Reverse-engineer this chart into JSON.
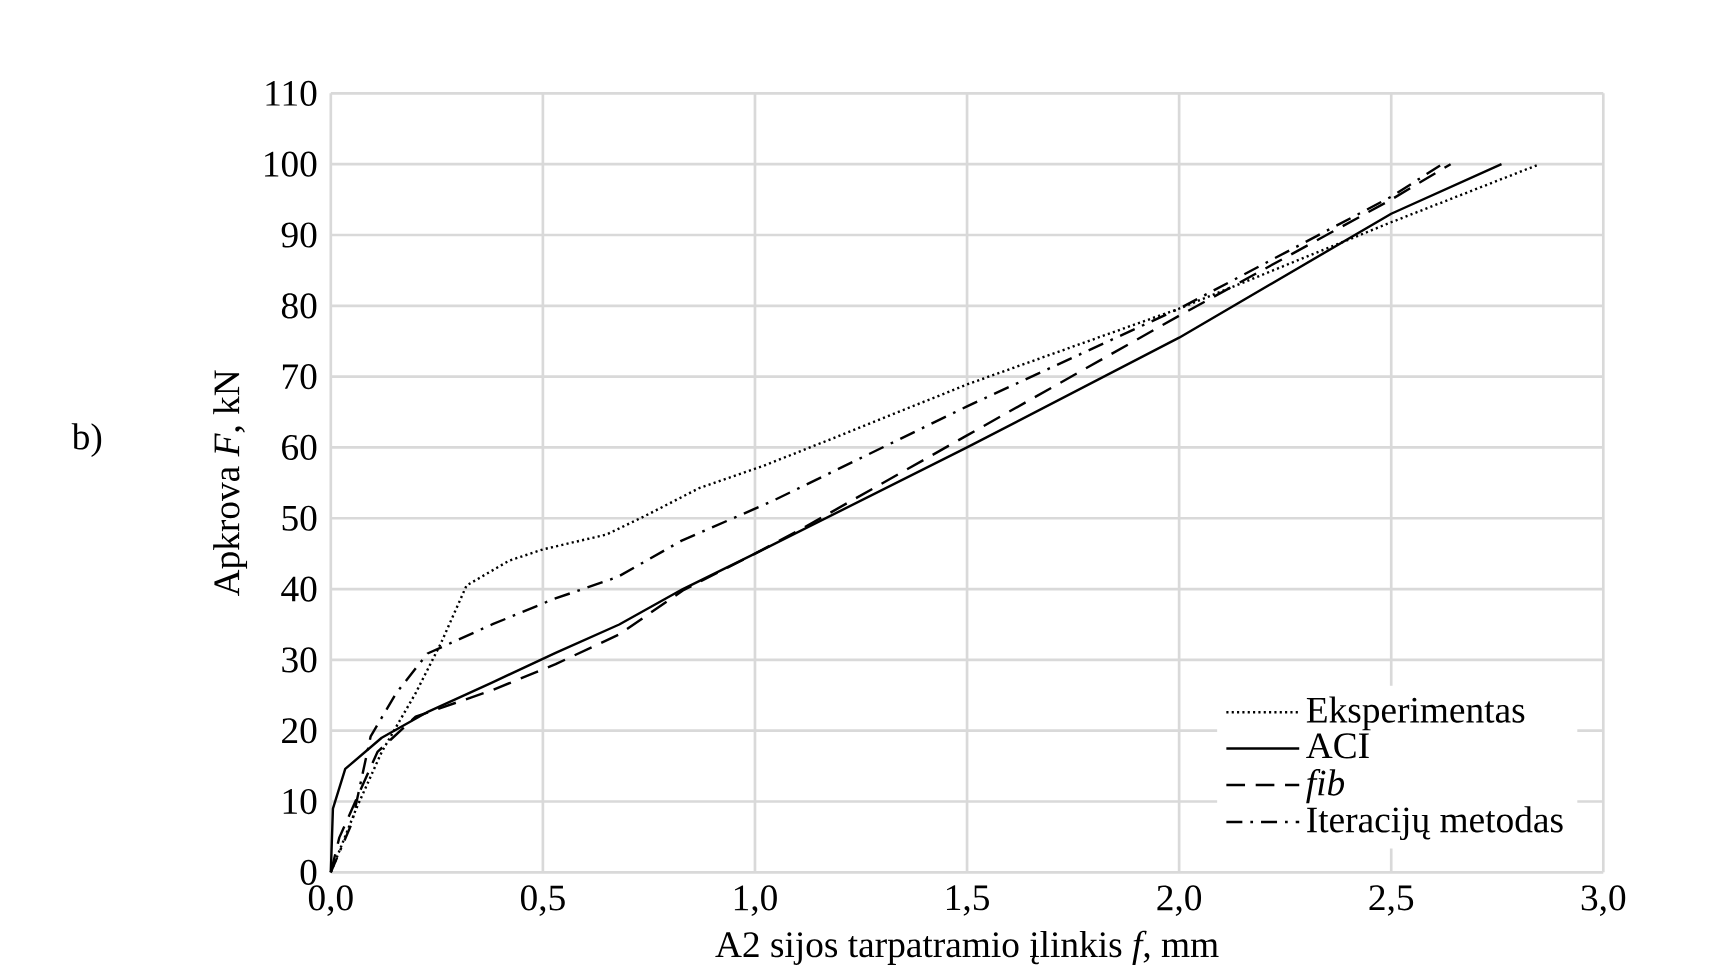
{
  "chart_data": {
    "type": "line",
    "xlabel": "A2 sijos tarpatramio įlinkis *f*, mm",
    "ylabel": "Apkrova *F*, kN",
    "annotations": [
      "b)"
    ],
    "xlim": [
      0,
      3
    ],
    "ylim": [
      0,
      110
    ],
    "xticks": [
      {
        "value": 0,
        "label": "0,0"
      },
      {
        "value": 0.5,
        "label": "0,5"
      },
      {
        "value": 1,
        "label": "1,0"
      },
      {
        "value": 1.5,
        "label": "1,5"
      },
      {
        "value": 2,
        "label": "2,0"
      },
      {
        "value": 2.5,
        "label": "2,5"
      },
      {
        "value": 3,
        "label": "3,0"
      }
    ],
    "yticks": [
      0,
      10,
      20,
      30,
      40,
      50,
      60,
      70,
      80,
      90,
      100,
      110
    ],
    "grid": true,
    "legend": "bottom right",
    "series": [
      {
        "name": "Eksperimentas",
        "color": "#000000",
        "line_style": "dotted",
        "x": [
          0,
          0.06,
          0.12,
          0.2,
          0.26,
          0.32,
          0.42,
          0.5,
          0.65,
          0.74,
          0.87,
          1.02,
          1.18,
          1.5,
          2.0,
          2.5,
          2.85
        ],
        "values": [
          0,
          9,
          17,
          25.3,
          32.4,
          40.5,
          44,
          45.6,
          47.7,
          50.3,
          54.3,
          57.4,
          61.2,
          68.9,
          79.6,
          91.8,
          100
        ]
      },
      {
        "name": "ACI",
        "color": "#000000",
        "line_style": "solid",
        "x": [
          0,
          0.005,
          0.034,
          0.12,
          0.23,
          0.38,
          0.53,
          0.68,
          0.83,
          1.0,
          1.5,
          2.0,
          2.5,
          2.76
        ],
        "values": [
          0,
          9,
          14.6,
          19,
          22.7,
          26.8,
          31,
          35,
          40,
          45,
          60,
          75.5,
          93,
          100
        ]
      },
      {
        "name": "*fib*",
        "color": "#000000",
        "line_style": "dashed",
        "x": [
          0,
          0.02,
          0.11,
          0.2,
          0.38,
          0.53,
          0.68,
          0.83,
          1.0,
          1.11,
          1.5,
          2.0,
          2.5,
          2.64
        ],
        "values": [
          0,
          4.9,
          17,
          22,
          25.7,
          29.4,
          33.6,
          39.8,
          45,
          48.5,
          61.7,
          78.6,
          95,
          100
        ]
      },
      {
        "name": "Iteracijų metodas",
        "color": "#000000",
        "line_style": "dashdot",
        "x": [
          0,
          0.05,
          0.094,
          0.154,
          0.228,
          0.38,
          0.526,
          0.676,
          0.826,
          1.04,
          1.5,
          2.0,
          2.5,
          2.62
        ],
        "values": [
          0,
          7,
          19.2,
          25.3,
          30.9,
          35,
          38.6,
          41.7,
          46.8,
          52.4,
          65.8,
          79.6,
          95.4,
          100
        ]
      }
    ]
  }
}
